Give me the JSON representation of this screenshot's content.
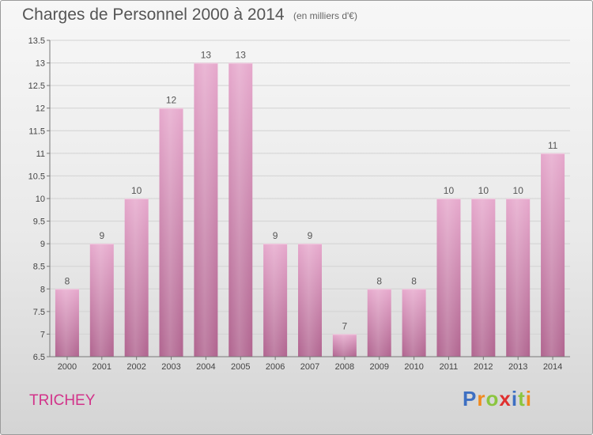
{
  "header": {
    "title": "Charges de Personnel 2000 à 2014",
    "subtitle": "(en milliers d'€)"
  },
  "footer": {
    "commune": "TRICHEY",
    "logo_letters": [
      "P",
      "r",
      "o",
      "x",
      "i",
      "t",
      "i"
    ],
    "logo_colors": [
      "#3d6fc2",
      "#f08a1e",
      "#8bc53f",
      "#e0302f",
      "#3d6fc2",
      "#8bc53f",
      "#f08a1e"
    ]
  },
  "chart_data": {
    "type": "bar",
    "categories": [
      "2000",
      "2001",
      "2002",
      "2003",
      "2004",
      "2005",
      "2006",
      "2007",
      "2008",
      "2009",
      "2010",
      "2011",
      "2012",
      "2013",
      "2014"
    ],
    "values": [
      8,
      9,
      10,
      12,
      13,
      13,
      9,
      9,
      7,
      8,
      8,
      10,
      10,
      10,
      11
    ],
    "labels": [
      "8",
      "9",
      "10",
      "12",
      "13",
      "13",
      "9",
      "9",
      "7",
      "8",
      "8",
      "10",
      "10",
      "10",
      "11"
    ],
    "ylim": [
      6.5,
      13.5
    ],
    "yticks": [
      6.5,
      7,
      7.5,
      8,
      8.5,
      9,
      9.5,
      10,
      10.5,
      11,
      11.5,
      12,
      12.5,
      13,
      13.5
    ],
    "ytick_labels": [
      "6.5",
      "7",
      "7.5",
      "8",
      "8.5",
      "9",
      "9.5",
      "10",
      "10.5",
      "11",
      "11.5",
      "12",
      "12.5",
      "13",
      "13.5"
    ],
    "grid": true,
    "bar_color_top": "#e6a8cc",
    "bar_color_bottom": "#b0648f"
  }
}
